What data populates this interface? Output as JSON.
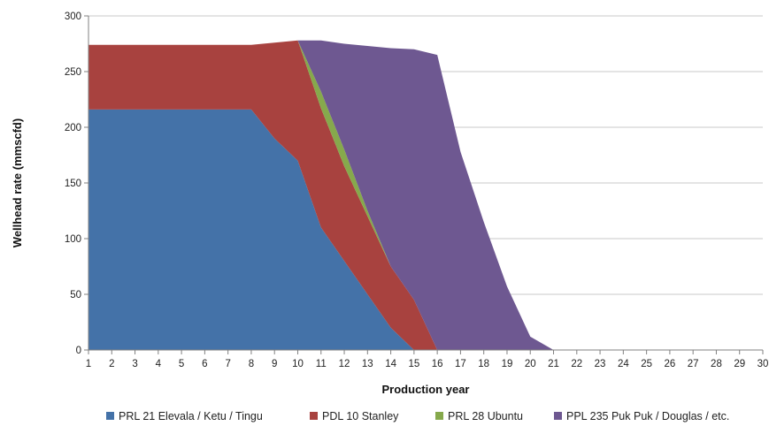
{
  "chart_data": {
    "type": "area",
    "stacked": true,
    "title": "",
    "xlabel": "Production year",
    "ylabel": "Wellhead  rate (mmscfd)",
    "ylim": [
      0,
      300
    ],
    "yticks": [
      0,
      50,
      100,
      150,
      200,
      250,
      300
    ],
    "x": [
      1,
      2,
      3,
      4,
      5,
      6,
      7,
      8,
      9,
      10,
      11,
      12,
      13,
      14,
      15,
      16,
      17,
      18,
      19,
      20,
      21,
      22,
      23,
      24,
      25,
      26,
      27,
      28,
      29,
      30
    ],
    "grid": "horizontal",
    "legend": "bottom",
    "series": [
      {
        "name": "PRL 21  Elevala / Ketu / Tingu",
        "color": "#4472a8",
        "values": [
          216,
          216,
          216,
          216,
          216,
          216,
          216,
          216,
          190,
          170,
          110,
          80,
          50,
          20,
          0,
          0,
          0,
          0,
          0,
          0,
          0,
          0,
          0,
          0,
          0,
          0,
          0,
          0,
          0,
          0
        ]
      },
      {
        "name": "PDL 10 Stanley",
        "color": "#a8423f",
        "values": [
          58,
          58,
          58,
          58,
          58,
          58,
          58,
          58,
          86,
          108,
          107,
          85,
          70,
          55,
          45,
          0,
          0,
          0,
          0,
          0,
          0,
          0,
          0,
          0,
          0,
          0,
          0,
          0,
          0,
          0
        ]
      },
      {
        "name": "PRL 28 Ubuntu",
        "color": "#86a94c",
        "values": [
          0,
          0,
          0,
          0,
          0,
          0,
          0,
          0,
          0,
          0,
          15,
          15,
          5,
          0,
          0,
          0,
          0,
          0,
          0,
          0,
          0,
          0,
          0,
          0,
          0,
          0,
          0,
          0,
          0,
          0
        ]
      },
      {
        "name": "PPL 235 Puk Puk / Douglas / etc.",
        "color": "#6e5891",
        "values": [
          0,
          0,
          0,
          0,
          0,
          0,
          0,
          0,
          0,
          0,
          46,
          95,
          148,
          196,
          225,
          265,
          178,
          115,
          57,
          12,
          0,
          0,
          0,
          0,
          0,
          0,
          0,
          0,
          0,
          0
        ]
      }
    ]
  }
}
